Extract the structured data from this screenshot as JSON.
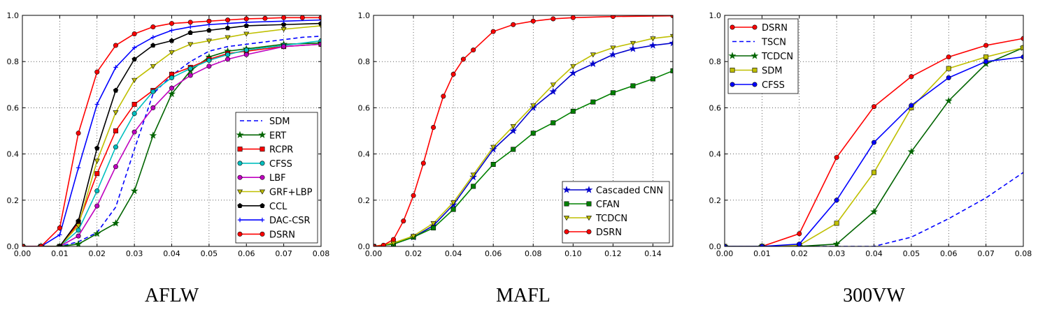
{
  "chart_data": [
    {
      "type": "line",
      "title": "AFLW",
      "xlim": [
        0,
        0.08
      ],
      "ylim": [
        0,
        1.0
      ],
      "x_ticks": [
        "0.00",
        "0.01",
        "0.02",
        "0.03",
        "0.04",
        "0.05",
        "0.06",
        "0.07",
        "0.08"
      ],
      "y_ticks": [
        "0.0",
        "0.2",
        "0.4",
        "0.6",
        "0.8",
        "1.0"
      ],
      "grid": true,
      "legend_position": "bottom-right",
      "series": [
        {
          "name": "SDM",
          "color": "#0000ff",
          "dash": "6,4",
          "marker": "none",
          "x": [
            0.0,
            0.01,
            0.015,
            0.02,
            0.025,
            0.03,
            0.035,
            0.04,
            0.045,
            0.05,
            0.055,
            0.06,
            0.065,
            0.07,
            0.075,
            0.08
          ],
          "y": [
            0.0,
            0.0,
            0.02,
            0.06,
            0.17,
            0.42,
            0.66,
            0.74,
            0.8,
            0.845,
            0.865,
            0.875,
            0.885,
            0.895,
            0.905,
            0.91
          ]
        },
        {
          "name": "ERT",
          "color": "#006400",
          "marker": "star",
          "x": [
            0.0,
            0.005,
            0.01,
            0.015,
            0.02,
            0.025,
            0.03,
            0.035,
            0.04,
            0.045,
            0.05,
            0.055,
            0.06,
            0.07,
            0.08
          ],
          "y": [
            0.0,
            0.0,
            0.0,
            0.01,
            0.055,
            0.1,
            0.24,
            0.48,
            0.66,
            0.76,
            0.82,
            0.845,
            0.855,
            0.875,
            0.88
          ]
        },
        {
          "name": "RCPR",
          "color": "#ff0000",
          "marker": "square",
          "x": [
            0.0,
            0.005,
            0.01,
            0.015,
            0.02,
            0.025,
            0.03,
            0.035,
            0.04,
            0.045,
            0.05,
            0.055,
            0.06,
            0.07,
            0.08
          ],
          "y": [
            0.0,
            0.0,
            0.0,
            0.1,
            0.315,
            0.5,
            0.615,
            0.675,
            0.745,
            0.775,
            0.81,
            0.835,
            0.845,
            0.865,
            0.875
          ]
        },
        {
          "name": "CFSS",
          "color": "#00bfbf",
          "marker": "circle",
          "x": [
            0.0,
            0.005,
            0.01,
            0.015,
            0.02,
            0.025,
            0.03,
            0.035,
            0.04,
            0.045,
            0.05,
            0.055,
            0.06,
            0.07,
            0.08
          ],
          "y": [
            0.0,
            0.0,
            0.0,
            0.07,
            0.24,
            0.43,
            0.575,
            0.67,
            0.73,
            0.77,
            0.805,
            0.83,
            0.85,
            0.87,
            0.89
          ]
        },
        {
          "name": "LBF",
          "color": "#bf00bf",
          "marker": "circle",
          "x": [
            0.0,
            0.005,
            0.01,
            0.015,
            0.02,
            0.025,
            0.03,
            0.035,
            0.04,
            0.045,
            0.05,
            0.055,
            0.06,
            0.07,
            0.08
          ],
          "y": [
            0.0,
            0.0,
            0.0,
            0.045,
            0.175,
            0.345,
            0.495,
            0.6,
            0.685,
            0.74,
            0.78,
            0.81,
            0.83,
            0.865,
            0.875
          ]
        },
        {
          "name": "GRF+LBP",
          "color": "#bfbf00",
          "marker": "triangle",
          "x": [
            0.0,
            0.005,
            0.01,
            0.015,
            0.02,
            0.025,
            0.03,
            0.035,
            0.04,
            0.045,
            0.05,
            0.055,
            0.06,
            0.07,
            0.08
          ],
          "y": [
            0.0,
            0.0,
            0.0,
            0.09,
            0.37,
            0.58,
            0.72,
            0.78,
            0.84,
            0.875,
            0.89,
            0.905,
            0.92,
            0.94,
            0.955
          ]
        },
        {
          "name": "CCL",
          "color": "#000000",
          "marker": "pentagon",
          "x": [
            0.0,
            0.005,
            0.01,
            0.015,
            0.02,
            0.025,
            0.03,
            0.035,
            0.04,
            0.045,
            0.05,
            0.055,
            0.06,
            0.07,
            0.08
          ],
          "y": [
            0.0,
            0.0,
            0.0,
            0.11,
            0.425,
            0.675,
            0.81,
            0.87,
            0.89,
            0.925,
            0.935,
            0.945,
            0.955,
            0.96,
            0.965
          ]
        },
        {
          "name": "DAC-CSR",
          "color": "#0000ff",
          "marker": "plus",
          "x": [
            0.0,
            0.005,
            0.01,
            0.015,
            0.02,
            0.025,
            0.03,
            0.035,
            0.04,
            0.045,
            0.05,
            0.055,
            0.06,
            0.07,
            0.08
          ],
          "y": [
            0.0,
            0.0,
            0.05,
            0.34,
            0.615,
            0.775,
            0.86,
            0.905,
            0.935,
            0.95,
            0.96,
            0.965,
            0.97,
            0.975,
            0.98
          ]
        },
        {
          "name": "DSRN",
          "color": "#ff0000",
          "marker": "circle",
          "x": [
            0.0,
            0.005,
            0.01,
            0.015,
            0.02,
            0.025,
            0.03,
            0.035,
            0.04,
            0.045,
            0.05,
            0.055,
            0.06,
            0.065,
            0.07,
            0.075,
            0.08
          ],
          "y": [
            0.0,
            0.0,
            0.08,
            0.49,
            0.755,
            0.87,
            0.92,
            0.95,
            0.965,
            0.97,
            0.975,
            0.98,
            0.985,
            0.987,
            0.99,
            0.99,
            0.99
          ]
        }
      ]
    },
    {
      "type": "line",
      "title": "MAFL",
      "xlim": [
        0,
        0.15
      ],
      "ylim": [
        0,
        1.0
      ],
      "x_ticks": [
        "0.00",
        "0.02",
        "0.04",
        "0.06",
        "0.08",
        "0.10",
        "0.12",
        "0.14"
      ],
      "y_ticks": [
        "0.0",
        "0.2",
        "0.4",
        "0.6",
        "0.8",
        "1.0"
      ],
      "grid": true,
      "legend_position": "bottom-right",
      "series": [
        {
          "name": "Cascaded CNN",
          "color": "#0000cc",
          "marker": "star",
          "x": [
            0.0,
            0.01,
            0.02,
            0.03,
            0.04,
            0.05,
            0.06,
            0.07,
            0.08,
            0.09,
            0.1,
            0.11,
            0.12,
            0.13,
            0.14,
            0.15
          ],
          "y": [
            0.0,
            0.01,
            0.04,
            0.09,
            0.18,
            0.3,
            0.42,
            0.5,
            0.6,
            0.67,
            0.75,
            0.79,
            0.83,
            0.855,
            0.87,
            0.88
          ]
        },
        {
          "name": "CFAN",
          "color": "#008000",
          "marker": "square",
          "x": [
            0.0,
            0.01,
            0.02,
            0.03,
            0.04,
            0.05,
            0.06,
            0.07,
            0.08,
            0.09,
            0.1,
            0.11,
            0.12,
            0.13,
            0.14,
            0.15
          ],
          "y": [
            0.0,
            0.01,
            0.04,
            0.08,
            0.16,
            0.26,
            0.355,
            0.42,
            0.49,
            0.535,
            0.585,
            0.625,
            0.665,
            0.695,
            0.725,
            0.76
          ]
        },
        {
          "name": "TCDCN",
          "color": "#bfbf00",
          "marker": "triangle",
          "x": [
            0.0,
            0.01,
            0.02,
            0.03,
            0.04,
            0.05,
            0.06,
            0.07,
            0.08,
            0.09,
            0.1,
            0.11,
            0.12,
            0.13,
            0.14,
            0.15
          ],
          "y": [
            0.0,
            0.015,
            0.045,
            0.1,
            0.19,
            0.31,
            0.43,
            0.52,
            0.61,
            0.7,
            0.78,
            0.83,
            0.86,
            0.88,
            0.9,
            0.91
          ]
        },
        {
          "name": "DSRN",
          "color": "#ff0000",
          "marker": "circle",
          "x": [
            0.0,
            0.005,
            0.01,
            0.015,
            0.02,
            0.025,
            0.03,
            0.035,
            0.04,
            0.045,
            0.05,
            0.06,
            0.07,
            0.08,
            0.09,
            0.1,
            0.12,
            0.15
          ],
          "y": [
            0.0,
            0.005,
            0.03,
            0.11,
            0.22,
            0.36,
            0.515,
            0.65,
            0.745,
            0.81,
            0.85,
            0.93,
            0.96,
            0.975,
            0.985,
            0.99,
            0.995,
            0.998
          ]
        }
      ]
    },
    {
      "type": "line",
      "title": "300VW",
      "xlim": [
        0,
        0.08
      ],
      "ylim": [
        0,
        1.0
      ],
      "x_ticks": [
        "0.00",
        "0.01",
        "0.02",
        "0.03",
        "0.04",
        "0.05",
        "0.06",
        "0.07",
        "0.08"
      ],
      "y_ticks": [
        "0.0",
        "0.2",
        "0.4",
        "0.6",
        "0.8",
        "1.0"
      ],
      "grid": true,
      "legend_position": "top-left",
      "series": [
        {
          "name": "DSRN",
          "color": "#ff0000",
          "marker": "circle",
          "x": [
            0.0,
            0.01,
            0.02,
            0.03,
            0.04,
            0.05,
            0.06,
            0.07,
            0.08
          ],
          "y": [
            0.0,
            0.0,
            0.055,
            0.385,
            0.605,
            0.735,
            0.82,
            0.87,
            0.9
          ]
        },
        {
          "name": "TSCN",
          "color": "#0000ff",
          "dash": "6,4",
          "marker": "none",
          "x": [
            0.0,
            0.01,
            0.02,
            0.03,
            0.04,
            0.05,
            0.06,
            0.07,
            0.08
          ],
          "y": [
            0.0,
            0.0,
            0.0,
            0.0,
            0.0,
            0.04,
            0.12,
            0.21,
            0.32
          ]
        },
        {
          "name": "TCDCN",
          "color": "#006400",
          "marker": "star",
          "x": [
            0.0,
            0.01,
            0.02,
            0.03,
            0.04,
            0.05,
            0.06,
            0.07,
            0.08
          ],
          "y": [
            0.0,
            0.0,
            0.0,
            0.01,
            0.15,
            0.41,
            0.63,
            0.79,
            0.86
          ]
        },
        {
          "name": "SDM",
          "color": "#bfbf00",
          "marker": "square",
          "x": [
            0.0,
            0.01,
            0.02,
            0.03,
            0.04,
            0.05,
            0.06,
            0.07,
            0.08
          ],
          "y": [
            0.0,
            0.0,
            0.005,
            0.1,
            0.32,
            0.6,
            0.77,
            0.82,
            0.86
          ]
        },
        {
          "name": "CFSS",
          "color": "#0000ff",
          "marker": "circle",
          "x": [
            0.0,
            0.01,
            0.02,
            0.03,
            0.04,
            0.05,
            0.06,
            0.07,
            0.08
          ],
          "y": [
            0.0,
            0.0,
            0.01,
            0.2,
            0.45,
            0.61,
            0.73,
            0.8,
            0.82
          ]
        }
      ]
    }
  ]
}
